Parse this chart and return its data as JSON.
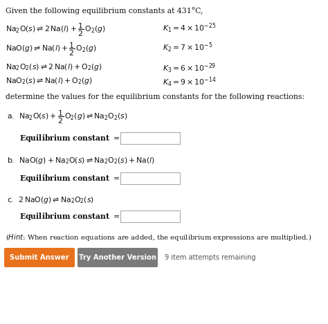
{
  "bg_color": "#ffffff",
  "text_color": "#111111",
  "orange_color": "#e8721c",
  "gray_color": "#7a7a7a",
  "submit_text": "Submit Answer",
  "version_text": "Try Another Version",
  "attempts_text": "9 item attempts remaining",
  "fig_width": 4.74,
  "fig_height": 4.68,
  "dpi": 100
}
